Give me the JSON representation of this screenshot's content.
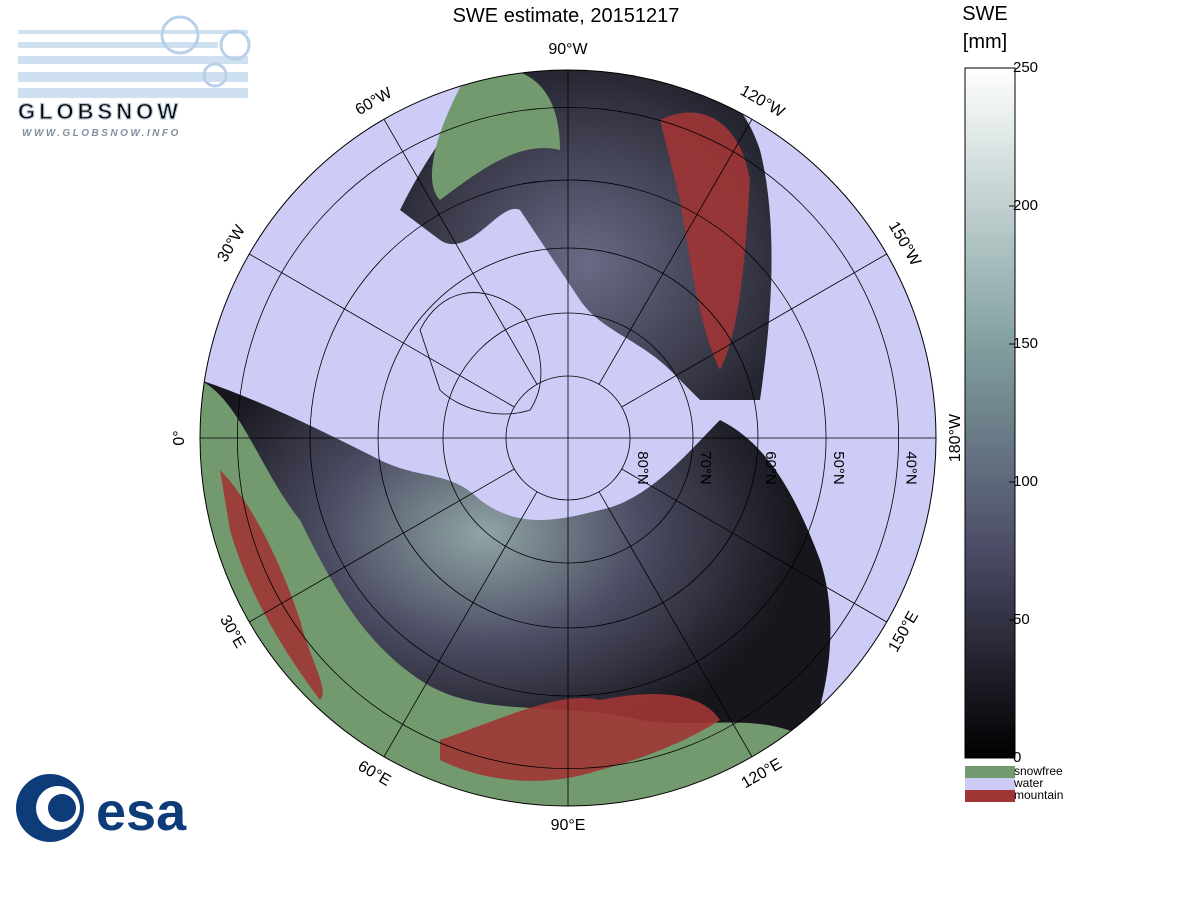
{
  "title": "SWE estimate, 20151217",
  "logo_top": {
    "name": "GLOBSNOW",
    "url": "WWW.GLOBSNOW.INFO"
  },
  "logo_bottom": "esa",
  "meridians": [
    {
      "lon": -90,
      "label": "90°W"
    },
    {
      "lon": -60,
      "label": "60°W"
    },
    {
      "lon": -30,
      "label": "30°W"
    },
    {
      "lon": 0,
      "label": "0°"
    },
    {
      "lon": 30,
      "label": "30°E"
    },
    {
      "lon": 60,
      "label": "60°E"
    },
    {
      "lon": 90,
      "label": "90°E"
    },
    {
      "lon": 120,
      "label": "120°E"
    },
    {
      "lon": 150,
      "label": "150°E"
    },
    {
      "lon": 180,
      "label": "180°W"
    },
    {
      "lon": -150,
      "label": "150°W"
    },
    {
      "lon": -120,
      "label": "120°W"
    }
  ],
  "parallels": [
    {
      "lat": 80,
      "label": "80°N"
    },
    {
      "lat": 70,
      "label": "70°N"
    },
    {
      "lat": 60,
      "label": "60°N"
    },
    {
      "lat": 50,
      "label": "50°N"
    },
    {
      "lat": 40,
      "label": "40°N"
    }
  ],
  "colorbar": {
    "label": [
      "SWE",
      "[mm]"
    ],
    "lim": [
      0,
      250
    ],
    "ticks": [
      0,
      50,
      100,
      150,
      200,
      250
    ]
  },
  "legend": [
    {
      "label": "snowfree",
      "color": "#73996f"
    },
    {
      "label": "water",
      "color": "#ccccf7"
    },
    {
      "label": "mountain",
      "color": "#a03535"
    }
  ]
}
